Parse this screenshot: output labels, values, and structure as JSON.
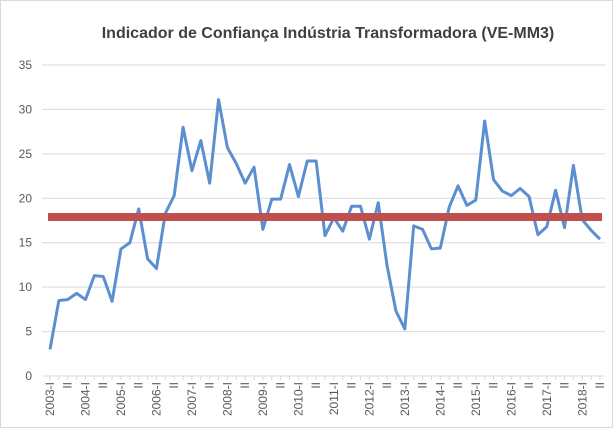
{
  "chart_data": {
    "type": "line",
    "title": "Indicador de Confiança Indústria Transformadora (VE-MM3)",
    "categories": [
      "2003-I",
      null,
      "II",
      null,
      "2004-I",
      null,
      "II",
      null,
      "2005-I",
      null,
      "II",
      null,
      "2006-I",
      null,
      "II",
      null,
      "2007-I",
      null,
      "II",
      null,
      "2008-I",
      null,
      "II",
      null,
      "2009-I",
      null,
      "II",
      null,
      "2010-I",
      null,
      "II",
      null,
      "2011-I",
      null,
      "II",
      null,
      "2012-I",
      null,
      "II",
      null,
      "2013-I",
      null,
      "II",
      null,
      "2014-I",
      null,
      "II",
      null,
      "2015-I",
      null,
      "II",
      null,
      "2016-I",
      null,
      "II",
      null,
      "2017-I",
      null,
      "II",
      null,
      "2018-I",
      null,
      "II"
    ],
    "series": [
      {
        "color": "#5b8fd0",
        "values": [
          3,
          8.5,
          8.6,
          9.3,
          8.6,
          11.3,
          11.2,
          8.4,
          14.3,
          15,
          18.8,
          13.2,
          12.1,
          18.3,
          20.3,
          28,
          23.1,
          26.5,
          21.7,
          31.1,
          25.7,
          23.9,
          21.7,
          23.5,
          16.5,
          19.9,
          19.9,
          23.8,
          20.2,
          24.2,
          24.2,
          15.8,
          17.8,
          16.3,
          19.1,
          19.1,
          15.4,
          19.5,
          12.4,
          7.3,
          5.3,
          16.9,
          16.5,
          14.3,
          14.4,
          19,
          21.4,
          19.2,
          19.8,
          28.7,
          22.1,
          20.8,
          20.3,
          21.1,
          20.2,
          15.9,
          16.8,
          20.9,
          16.7,
          23.7,
          17.6,
          16.4,
          15.4
        ]
      }
    ],
    "reference_line": {
      "value": 17.9,
      "color": "#c0504d"
    },
    "ylim": [
      0,
      35
    ],
    "yticks": [
      0,
      5,
      10,
      15,
      20,
      25,
      30,
      35
    ],
    "grid": true
  }
}
